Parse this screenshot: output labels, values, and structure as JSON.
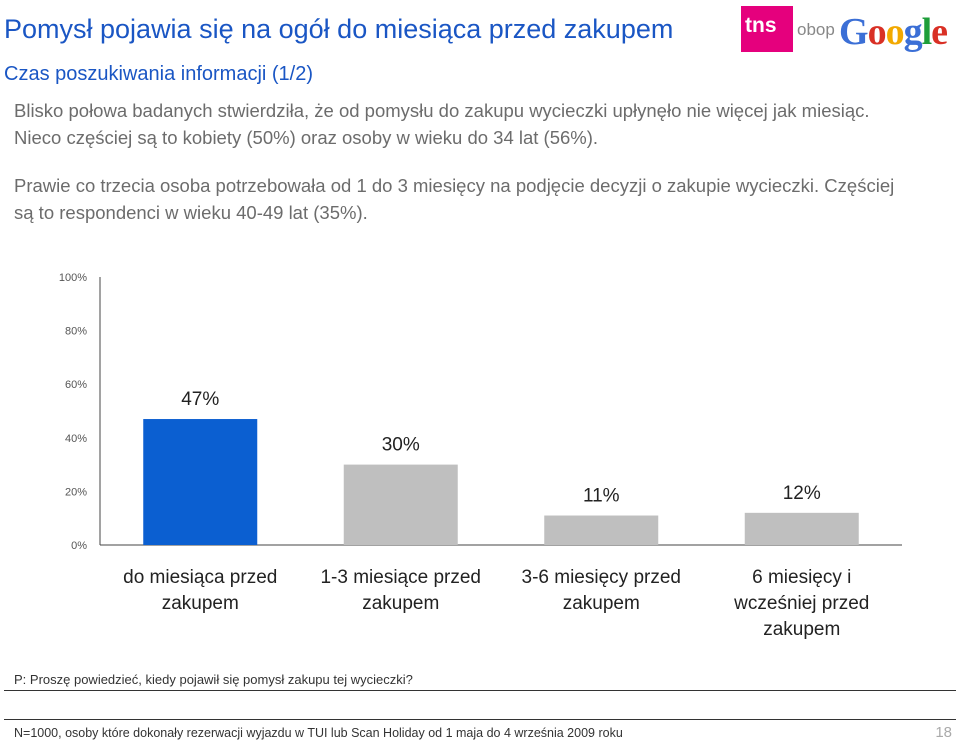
{
  "header": {
    "title": "Pomysł pojawia się na ogół do miesiąca przed zakupem",
    "subtitle": "Czas poszukiwania informacji (1/2)"
  },
  "logos": {
    "tns": "tns",
    "obop": "obop",
    "google": "Google"
  },
  "body": {
    "paragraph1": "Blisko połowa badanych stwierdziła, że od pomysłu do zakupu wycieczki upłynęło nie więcej jak miesiąc. Nieco częściej są to kobiety (50%) oraz osoby w wieku do 34 lat (56%).",
    "paragraph2": "Prawie co trzecia osoba potrzebowała od 1 do 3 miesięcy na podjęcie decyzji o zakupie wycieczki. Częściej są to respondenci w wieku 40-49 lat (35%)."
  },
  "chart_data": {
    "type": "bar",
    "categories": [
      [
        "do miesiąca przed",
        "zakupem"
      ],
      [
        "1-3 miesiące przed",
        "zakupem"
      ],
      [
        "3-6 miesięcy przed",
        "zakupem"
      ],
      [
        "6 miesięcy i",
        "wcześniej przed",
        "zakupem"
      ]
    ],
    "values": [
      47,
      30,
      11,
      12
    ],
    "data_labels": [
      "47%",
      "30%",
      "11%",
      "12%"
    ],
    "highlight_index": 0,
    "ylim": [
      0,
      100
    ],
    "yticks": [
      "0%",
      "20%",
      "40%",
      "60%",
      "80%",
      "100%"
    ],
    "colors": {
      "highlight": "#0b5fd1",
      "default": "#bfbfbf"
    }
  },
  "footer": {
    "question": "P: Proszę powiedzieć, kiedy pojawił się pomysł zakupu tej wycieczki?",
    "note": "N=1000, osoby które dokonały rezerwacji wyjazdu  w TUI lub Scan Holiday od 1 maja do 4 września 2009 roku",
    "page": "18"
  }
}
